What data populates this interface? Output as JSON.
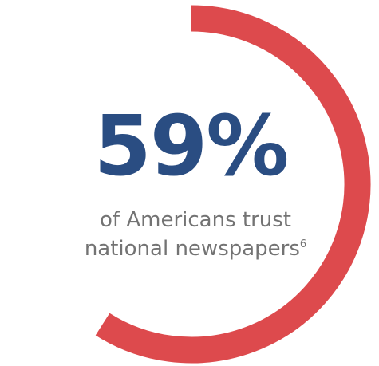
{
  "chart_data": {
    "type": "pie",
    "value": 59,
    "max": 100,
    "value_label": "59%",
    "caption_line1": "of Americans trust",
    "caption_line2": "national newspapers",
    "footnote_marker": "6"
  },
  "colors": {
    "ring": "#dd4a4d",
    "number": "#2a4d82",
    "caption": "#737373"
  }
}
